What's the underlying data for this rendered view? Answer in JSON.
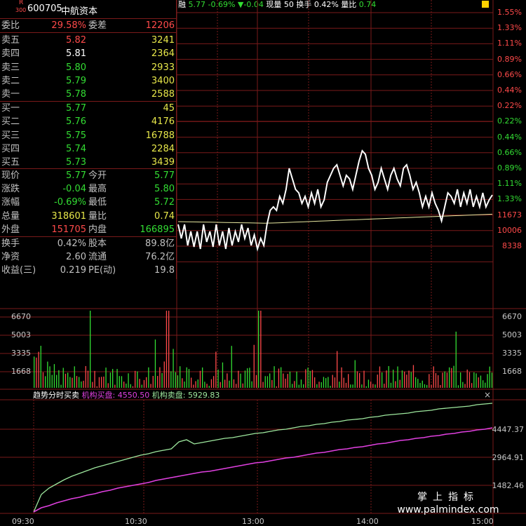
{
  "quote": {
    "badge_top": "R",
    "badge_bottom": "300",
    "code": "600705",
    "name": "中航资本",
    "weibi_label": "委比",
    "weibi_value": "29.58%",
    "weicha_label": "委差",
    "weicha_value": "12206",
    "asks": [
      {
        "label": "卖五",
        "price": "5.82",
        "volume": "3241",
        "color": "#ff4a4a"
      },
      {
        "label": "卖四",
        "price": "5.81",
        "volume": "2364",
        "color": "#ffffff"
      },
      {
        "label": "卖三",
        "price": "5.80",
        "volume": "2933",
        "color": "#33dd33"
      },
      {
        "label": "卖二",
        "price": "5.79",
        "volume": "3400",
        "color": "#33dd33"
      },
      {
        "label": "卖一",
        "price": "5.78",
        "volume": "2588",
        "color": "#33dd33"
      }
    ],
    "bids": [
      {
        "label": "买一",
        "price": "5.77",
        "volume": "45",
        "color": "#33dd33"
      },
      {
        "label": "买二",
        "price": "5.76",
        "volume": "4176",
        "color": "#33dd33"
      },
      {
        "label": "买三",
        "price": "5.75",
        "volume": "16788",
        "color": "#33dd33"
      },
      {
        "label": "买四",
        "price": "5.74",
        "volume": "2284",
        "color": "#33dd33"
      },
      {
        "label": "买五",
        "price": "5.73",
        "volume": "3439",
        "color": "#33dd33"
      }
    ],
    "stats": [
      {
        "l1": "现价",
        "v1": "5.77",
        "c1": "#33dd33",
        "l2": "今开",
        "v2": "5.77",
        "c2": "#33dd33"
      },
      {
        "l1": "涨跌",
        "v1": "-0.04",
        "c1": "#33dd33",
        "l2": "最高",
        "v2": "5.80",
        "c2": "#33dd33"
      },
      {
        "l1": "涨幅",
        "v1": "-0.69%",
        "c1": "#33dd33",
        "l2": "最低",
        "v2": "5.72",
        "c2": "#33dd33"
      },
      {
        "l1": "总量",
        "v1": "318601",
        "c1": "#e8e84a",
        "l2": "量比",
        "v2": "0.74",
        "c2": "#e8e84a"
      },
      {
        "l1": "外盘",
        "v1": "151705",
        "c1": "#ff4a4a",
        "l2": "内盘",
        "v2": "166895",
        "c2": "#33dd33"
      }
    ],
    "extra": [
      {
        "l1": "换手",
        "v1": "0.42%",
        "l2": "股本",
        "v2": "89.8亿"
      },
      {
        "l1": "净资",
        "v1": "2.60",
        "l2": "流通",
        "v2": "76.2亿"
      },
      {
        "l1": "收益(三)",
        "v1": "0.219",
        "l2": "PE(动)",
        "v2": "19.8"
      }
    ]
  },
  "topbar": {
    "rong": "融",
    "price": "5.77",
    "pct": "-0.69%",
    "change": "▼-0.04",
    "xianliang_label": "现量",
    "xianliang": "50",
    "huanshou_label": "换手",
    "huanshou": "0.42%",
    "liangbi_label": "量比",
    "liangbi": "0.74"
  },
  "price_axis": [
    "1.55%",
    "1.33%",
    "1.11%",
    "0.89%",
    "0.66%",
    "0.44%",
    "0.22%",
    "0.22%",
    "0.44%",
    "0.66%",
    "0.89%",
    "1.11%",
    "1.33%",
    "11673",
    "10006",
    "8338"
  ],
  "price_axis_colors": [
    "#ff4a4a",
    "#ff4a4a",
    "#ff4a4a",
    "#ff4a4a",
    "#ff4a4a",
    "#ff4a4a",
    "#ff4a4a",
    "#33dd33",
    "#33dd33",
    "#33dd33",
    "#33dd33",
    "#33dd33",
    "#33dd33",
    "#ff4a4a",
    "#ff4a4a",
    "#ff4a4a"
  ],
  "volume_axis": [
    "6670",
    "5003",
    "3335",
    "1668"
  ],
  "bottom": {
    "title": "趋势分时买卖",
    "buy_label": "机构买盘:",
    "buy_value": "4550.50",
    "sell_label": "机构卖盘:",
    "sell_value": "5929.83",
    "close": "×",
    "axis": [
      "4447.37",
      "2964.91",
      "1482.46"
    ]
  },
  "time_axis": [
    "09:30",
    "10:30",
    "13:00",
    "14:00",
    "15:00"
  ],
  "watermark": {
    "line1": "掌上指标",
    "line2": "www.palmindex.com"
  },
  "colors": {
    "grid": "#7a1a1a",
    "price_line": "#ffffff",
    "avg_line": "#e8e8a0",
    "buy_line": "#e040e0",
    "sell_line": "#9ee89e"
  }
}
